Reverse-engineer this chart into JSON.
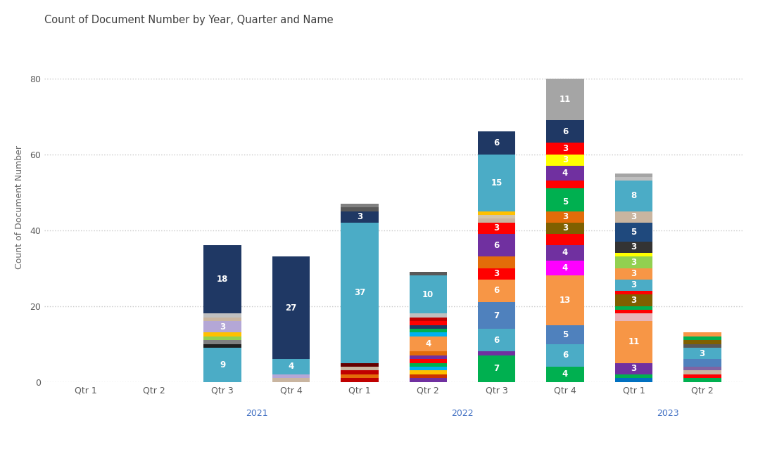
{
  "title": "Count of Document Number by Year, Quarter and Name",
  "ylabel": "Count of Document Number",
  "xlabel_groups": [
    {
      "label": "2021",
      "x_center": 3.5
    },
    {
      "label": "2022",
      "x_center": 6.5
    },
    {
      "label": "2023",
      "x_center": 9.5
    }
  ],
  "xtick_labels": [
    "Qtr 1",
    "Qtr 2",
    "Qtr 3",
    "Qtr 4",
    "Qtr 1",
    "Qtr 2",
    "Qtr 3",
    "Qtr 4",
    "Qtr 1",
    "Qtr 2"
  ],
  "xtick_positions": [
    1,
    2,
    3,
    4,
    5,
    6,
    7,
    8,
    9,
    10
  ],
  "ylim": [
    0,
    92
  ],
  "yticks": [
    0,
    20,
    40,
    60,
    80
  ],
  "background_color": "#ffffff",
  "grid_color": "#c8c8c8",
  "bar_width": 0.55,
  "title_color": "#404040",
  "axis_label_color": "#666666",
  "tick_label_color": "#595959",
  "year_label_color": "#4472c4",
  "bars": [
    {
      "x": 1,
      "segments": []
    },
    {
      "x": 2,
      "segments": []
    },
    {
      "x": 3,
      "segments": [
        {
          "value": 9,
          "color": "#4bacc6",
          "label": "9"
        },
        {
          "value": 1,
          "color": "#1f1f1f",
          "label": ""
        },
        {
          "value": 1,
          "color": "#7f7f7f",
          "label": ""
        },
        {
          "value": 1,
          "color": "#92d050",
          "label": ""
        },
        {
          "value": 1,
          "color": "#ffc000",
          "label": ""
        },
        {
          "value": 3,
          "color": "#b4a7d6",
          "label": "3"
        },
        {
          "value": 1,
          "color": "#c9b5a0",
          "label": ""
        },
        {
          "value": 1,
          "color": "#c0c0c0",
          "label": ""
        },
        {
          "value": 18,
          "color": "#1f3864",
          "label": "18"
        }
      ]
    },
    {
      "x": 4,
      "segments": [
        {
          "value": 1,
          "color": "#c9b5a0",
          "label": ""
        },
        {
          "value": 1,
          "color": "#b4a7d6",
          "label": ""
        },
        {
          "value": 4,
          "color": "#4bacc6",
          "label": "4"
        },
        {
          "value": 27,
          "color": "#1f3864",
          "label": "27"
        }
      ]
    },
    {
      "x": 5,
      "segments": [
        {
          "value": 1,
          "color": "#c00000",
          "label": ""
        },
        {
          "value": 1,
          "color": "#e36c09",
          "label": ""
        },
        {
          "value": 1,
          "color": "#c00000",
          "label": ""
        },
        {
          "value": 1,
          "color": "#c9b5a0",
          "label": ""
        },
        {
          "value": 1,
          "color": "#660000",
          "label": ""
        },
        {
          "value": 37,
          "color": "#4bacc6",
          "label": "37"
        },
        {
          "value": 3,
          "color": "#1f3864",
          "label": "3"
        },
        {
          "value": 1,
          "color": "#595959",
          "label": ""
        },
        {
          "value": 1,
          "color": "#808080",
          "label": ""
        }
      ]
    },
    {
      "x": 6,
      "segments": [
        {
          "value": 1,
          "color": "#7030a0",
          "label": ""
        },
        {
          "value": 1,
          "color": "#cc3300",
          "label": ""
        },
        {
          "value": 1,
          "color": "#ffc000",
          "label": ""
        },
        {
          "value": 1,
          "color": "#00b0f0",
          "label": ""
        },
        {
          "value": 1,
          "color": "#00b050",
          "label": ""
        },
        {
          "value": 1,
          "color": "#ff0000",
          "label": ""
        },
        {
          "value": 1,
          "color": "#7030a0",
          "label": ""
        },
        {
          "value": 1,
          "color": "#e36c09",
          "label": ""
        },
        {
          "value": 4,
          "color": "#f79646",
          "label": "4"
        },
        {
          "value": 1,
          "color": "#00b0f0",
          "label": ""
        },
        {
          "value": 1,
          "color": "#00b050",
          "label": ""
        },
        {
          "value": 1,
          "color": "#1f3864",
          "label": ""
        },
        {
          "value": 1,
          "color": "#ff0000",
          "label": ""
        },
        {
          "value": 1,
          "color": "#c00000",
          "label": ""
        },
        {
          "value": 1,
          "color": "#bfbfbf",
          "label": ""
        },
        {
          "value": 10,
          "color": "#4bacc6",
          "label": "10"
        },
        {
          "value": 1,
          "color": "#595959",
          "label": ""
        }
      ]
    },
    {
      "x": 7,
      "segments": [
        {
          "value": 7,
          "color": "#00b050",
          "label": "7"
        },
        {
          "value": 1,
          "color": "#7030a0",
          "label": ""
        },
        {
          "value": 6,
          "color": "#4bacc6",
          "label": "6"
        },
        {
          "value": 7,
          "color": "#4f81bd",
          "label": "7"
        },
        {
          "value": 6,
          "color": "#f79646",
          "label": "6"
        },
        {
          "value": 3,
          "color": "#ff0000",
          "label": "3"
        },
        {
          "value": 3,
          "color": "#e36c09",
          "label": ""
        },
        {
          "value": 6,
          "color": "#7030a0",
          "label": "6"
        },
        {
          "value": 3,
          "color": "#ff0000",
          "label": "3"
        },
        {
          "value": 1,
          "color": "#c9b5a0",
          "label": ""
        },
        {
          "value": 1,
          "color": "#d4c5a9",
          "label": ""
        },
        {
          "value": 1,
          "color": "#ffc000",
          "label": ""
        },
        {
          "value": 15,
          "color": "#4bacc6",
          "label": "15"
        },
        {
          "value": 6,
          "color": "#1f3864",
          "label": "6"
        }
      ]
    },
    {
      "x": 8,
      "segments": [
        {
          "value": 4,
          "color": "#00b050",
          "label": "4"
        },
        {
          "value": 6,
          "color": "#4bacc6",
          "label": "6"
        },
        {
          "value": 5,
          "color": "#4f81bd",
          "label": "5"
        },
        {
          "value": 13,
          "color": "#f79646",
          "label": "13"
        },
        {
          "value": 4,
          "color": "#ff00ff",
          "label": "4"
        },
        {
          "value": 4,
          "color": "#7030a0",
          "label": "4"
        },
        {
          "value": 3,
          "color": "#ff0000",
          "label": ""
        },
        {
          "value": 3,
          "color": "#7f6000",
          "label": "3"
        },
        {
          "value": 3,
          "color": "#e36c09",
          "label": "3"
        },
        {
          "value": 5,
          "color": "#00b050",
          "label": "5"
        },
        {
          "value": 1,
          "color": "#00b050",
          "label": ""
        },
        {
          "value": 1,
          "color": "#ff0000",
          "label": ""
        },
        {
          "value": 1,
          "color": "#ff0000",
          "label": ""
        },
        {
          "value": 4,
          "color": "#7030a0",
          "label": "4"
        },
        {
          "value": 3,
          "color": "#ffff00",
          "label": "3"
        },
        {
          "value": 3,
          "color": "#ff0000",
          "label": "3"
        },
        {
          "value": 6,
          "color": "#1f3864",
          "label": "6"
        },
        {
          "value": 11,
          "color": "#a5a5a5",
          "label": "11"
        }
      ]
    },
    {
      "x": 9,
      "segments": [
        {
          "value": 1,
          "color": "#0070c0",
          "label": ""
        },
        {
          "value": 1,
          "color": "#00b050",
          "label": ""
        },
        {
          "value": 3,
          "color": "#7030a0",
          "label": "3"
        },
        {
          "value": 11,
          "color": "#f79646",
          "label": "11"
        },
        {
          "value": 1,
          "color": "#e8b4b8",
          "label": ""
        },
        {
          "value": 1,
          "color": "#e8b4b8",
          "label": ""
        },
        {
          "value": 1,
          "color": "#ff0000",
          "label": ""
        },
        {
          "value": 1,
          "color": "#00b050",
          "label": ""
        },
        {
          "value": 3,
          "color": "#7f6000",
          "label": "3"
        },
        {
          "value": 1,
          "color": "#ff0000",
          "label": ""
        },
        {
          "value": 3,
          "color": "#4bacc6",
          "label": "3"
        },
        {
          "value": 3,
          "color": "#f79646",
          "label": "3"
        },
        {
          "value": 3,
          "color": "#92d050",
          "label": "3"
        },
        {
          "value": 1,
          "color": "#ffff00",
          "label": ""
        },
        {
          "value": 3,
          "color": "#333333",
          "label": "3"
        },
        {
          "value": 5,
          "color": "#1f497d",
          "label": "5"
        },
        {
          "value": 3,
          "color": "#c9b5a0",
          "label": "3"
        },
        {
          "value": 8,
          "color": "#4bacc6",
          "label": "8"
        },
        {
          "value": 1,
          "color": "#bfbfbf",
          "label": ""
        },
        {
          "value": 1,
          "color": "#a5a5a5",
          "label": ""
        }
      ]
    },
    {
      "x": 10,
      "segments": [
        {
          "value": 1,
          "color": "#00b050",
          "label": ""
        },
        {
          "value": 1,
          "color": "#ff0000",
          "label": ""
        },
        {
          "value": 1,
          "color": "#c9b5a0",
          "label": ""
        },
        {
          "value": 1,
          "color": "#8064a2",
          "label": ""
        },
        {
          "value": 1,
          "color": "#4f81bd",
          "label": ""
        },
        {
          "value": 1,
          "color": "#4f81bd",
          "label": ""
        },
        {
          "value": 3,
          "color": "#4bacc6",
          "label": "3"
        },
        {
          "value": 1,
          "color": "#595959",
          "label": ""
        },
        {
          "value": 1,
          "color": "#7f6000",
          "label": ""
        },
        {
          "value": 1,
          "color": "#00b050",
          "label": ""
        },
        {
          "value": 1,
          "color": "#f79646",
          "label": ""
        }
      ]
    }
  ]
}
